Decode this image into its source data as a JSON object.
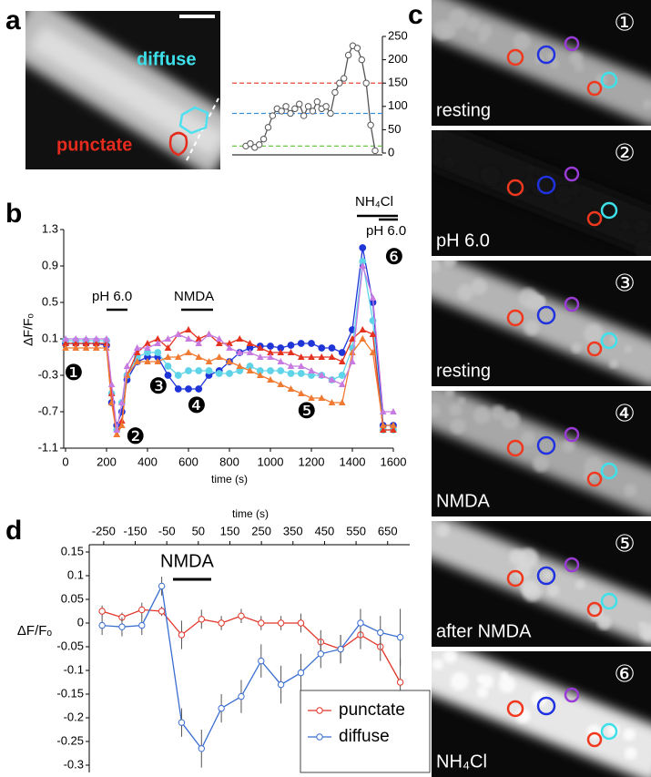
{
  "panel_labels": [
    "a",
    "b",
    "c",
    "d"
  ],
  "image_a": {
    "labels": [
      "diffuse",
      "punctate"
    ]
  },
  "images_c": [
    {
      "number": "①",
      "label": "resting"
    },
    {
      "number": "②",
      "label": "pH 6.0"
    },
    {
      "number": "③",
      "label": "resting"
    },
    {
      "number": "④",
      "label": "NMDA"
    },
    {
      "number": "⑤",
      "label": "after NMDA"
    },
    {
      "number": "⑥",
      "label": "NH₄Cl"
    }
  ],
  "chart_data": [
    {
      "type": "line",
      "series": [
        {
          "color": "#555555",
          "marker": "open-circle",
          "values": [
            15,
            20,
            12,
            18,
            30,
            55,
            80,
            95,
            90,
            100,
            85,
            95,
            105,
            80,
            100,
            90,
            110,
            95,
            100,
            85,
            130,
            150,
            160,
            210,
            230,
            225,
            200,
            150,
            60,
            5
          ]
        }
      ],
      "reference_lines": [
        {
          "value": 150,
          "color": "#e83020"
        },
        {
          "value": 85,
          "color": "#3a8ee0"
        },
        {
          "value": 15,
          "color": "#5ac030"
        }
      ],
      "ylim": [
        0,
        250
      ],
      "yticks": [
        0,
        50,
        100,
        150,
        200,
        250
      ],
      "y_axis_side": "right"
    },
    {
      "type": "line",
      "y_label": "ΔF/Fₒ",
      "x_label": "time (s)",
      "x": [
        0,
        50,
        100,
        150,
        200,
        225,
        250,
        275,
        300,
        350,
        400,
        450,
        500,
        550,
        600,
        650,
        700,
        750,
        800,
        850,
        900,
        950,
        1000,
        1050,
        1100,
        1150,
        1200,
        1250,
        1300,
        1350,
        1400,
        1450,
        1500,
        1550,
        1600
      ],
      "series": [
        {
          "color": "#1f35d8",
          "marker": "circle",
          "values": [
            0.05,
            0.05,
            0.05,
            0.05,
            0.03,
            -0.6,
            -0.85,
            -0.7,
            -0.35,
            -0.15,
            -0.1,
            -0.1,
            -0.3,
            -0.45,
            -0.45,
            -0.45,
            -0.3,
            -0.25,
            -0.15,
            -0.05,
            0,
            0.02,
            0.02,
            0,
            0.03,
            0.05,
            0.05,
            0,
            0,
            -0.05,
            0.2,
            1.1,
            0.5,
            -0.85,
            -0.85
          ]
        },
        {
          "color": "#5fd3e8",
          "marker": "circle",
          "values": [
            0.08,
            0.08,
            0.08,
            0.08,
            0.08,
            -0.5,
            -0.9,
            -0.6,
            -0.3,
            -0.1,
            -0.05,
            -0.05,
            -0.2,
            -0.3,
            -0.25,
            -0.25,
            -0.25,
            -0.28,
            -0.28,
            -0.25,
            -0.2,
            -0.25,
            -0.25,
            -0.25,
            -0.28,
            -0.28,
            -0.3,
            -0.3,
            -0.35,
            -0.3,
            0,
            0.95,
            0.3,
            -0.9,
            -0.9
          ]
        },
        {
          "color": "#e5321f",
          "marker": "triangle",
          "values": [
            0.05,
            0.05,
            0.05,
            0.05,
            0.05,
            -0.5,
            -0.95,
            -0.8,
            -0.3,
            -0.05,
            0.05,
            0.1,
            0,
            0.15,
            0.2,
            0.1,
            0.15,
            0.05,
            0.05,
            0.1,
            0.05,
            0,
            -0.05,
            -0.05,
            -0.05,
            -0.1,
            -0.1,
            -0.1,
            -0.1,
            -0.15,
            0.1,
            0.2,
            0.15,
            -0.9,
            -0.9
          ]
        },
        {
          "color": "#f07a32",
          "marker": "triangle",
          "values": [
            0,
            0,
            0,
            0,
            0,
            -0.6,
            -0.95,
            -0.85,
            -0.3,
            -0.15,
            -0.15,
            -0.15,
            -0.1,
            -0.1,
            -0.05,
            -0.1,
            -0.15,
            -0.1,
            -0.15,
            -0.2,
            -0.25,
            -0.3,
            -0.35,
            -0.4,
            -0.45,
            -0.5,
            -0.55,
            -0.55,
            -0.6,
            -0.6,
            -0.05,
            0.1,
            -0.05,
            -0.85,
            -0.85
          ]
        },
        {
          "color": "#c77be0",
          "marker": "triangle",
          "values": [
            0.1,
            0.1,
            0.1,
            0.1,
            0.1,
            -0.4,
            -0.9,
            -0.6,
            -0.2,
            0,
            0,
            0.05,
            0.1,
            0.15,
            0.1,
            0.05,
            0.15,
            0.1,
            0,
            -0.05,
            -0.05,
            -0.1,
            -0.1,
            -0.15,
            -0.2,
            -0.2,
            -0.25,
            -0.3,
            -0.35,
            -0.4,
            -0.15,
            0.9,
            0.55,
            -0.7,
            -0.7
          ]
        }
      ],
      "annotations": [
        "pH 6.0",
        "NMDA",
        "NH₄Cl",
        "pH 6.0",
        "❶",
        "❷",
        "❸",
        "❹",
        "❺",
        "❻"
      ],
      "xlim": [
        0,
        1600
      ],
      "xticks": [
        0,
        200,
        400,
        600,
        800,
        1000,
        1200,
        1400,
        1600
      ],
      "ylim": [
        -1.1,
        1.3
      ],
      "yticks": [
        -1.1,
        -0.7,
        -0.3,
        0.1,
        0.5,
        0.9,
        1.3
      ]
    },
    {
      "type": "line",
      "y_label": "ΔF/Fₒ",
      "x_label": "time (s)",
      "x_axis_position": "top",
      "x": [
        -255,
        -192,
        -129,
        -66,
        -3,
        60,
        123,
        186,
        249,
        312,
        375,
        438,
        501,
        564,
        627,
        690
      ],
      "series": [
        {
          "name": "punctate",
          "color": "#e0362a",
          "marker": "open-circle",
          "values": [
            0.025,
            0.012,
            0.028,
            0.025,
            -0.025,
            0.008,
            0,
            0.015,
            0,
            0,
            0,
            -0.04,
            -0.055,
            -0.025,
            -0.05,
            -0.125
          ],
          "errors": [
            0.012,
            0.01,
            0.015,
            0.01,
            0.03,
            0.02,
            0.015,
            0.015,
            0.015,
            0.015,
            0.02,
            0.025,
            0.03,
            0.03,
            0.03,
            0.05
          ]
        },
        {
          "name": "diffuse",
          "color": "#3a6ed0",
          "marker": "open-circle",
          "values": [
            -0.005,
            -0.008,
            -0.005,
            0.078,
            -0.21,
            -0.265,
            -0.18,
            -0.155,
            -0.08,
            -0.13,
            -0.105,
            -0.065,
            -0.055,
            0,
            -0.02,
            -0.03
          ],
          "errors": [
            0.02,
            0.02,
            0.02,
            0.02,
            0.03,
            0.04,
            0.03,
            0.035,
            0.035,
            0.04,
            0.04,
            0.03,
            0.03,
            0.03,
            0.035,
            0.06
          ]
        }
      ],
      "annotations": [
        "NMDA"
      ],
      "legend": "lower-right",
      "xlim": [
        -290,
        720
      ],
      "xticks": [
        -250,
        -150,
        -50,
        50,
        150,
        250,
        350,
        450,
        550,
        650
      ],
      "ylim": [
        -0.3,
        0.15
      ],
      "yticks": [
        0.15,
        0.1,
        0.05,
        0,
        -0.05,
        -0.1,
        -0.15,
        -0.2,
        -0.25,
        -0.3
      ]
    }
  ]
}
